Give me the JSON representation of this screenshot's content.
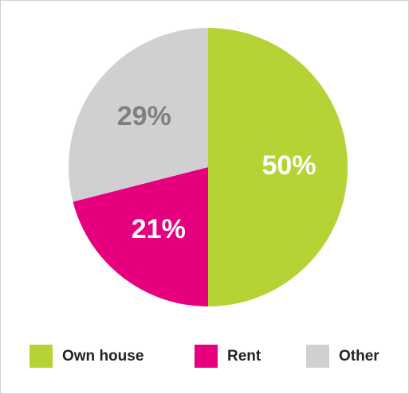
{
  "chart_data": {
    "type": "pie",
    "categories": [
      "Own house",
      "Rent",
      "Other"
    ],
    "values": [
      50,
      21,
      29
    ],
    "value_labels": [
      "50%",
      "21%",
      "29%"
    ],
    "colors": [
      "#b5d334",
      "#e6007e",
      "#d0d0d2"
    ],
    "label_colors": [
      "#ffffff",
      "#ffffff",
      "#808080"
    ],
    "legend": "bottom"
  }
}
